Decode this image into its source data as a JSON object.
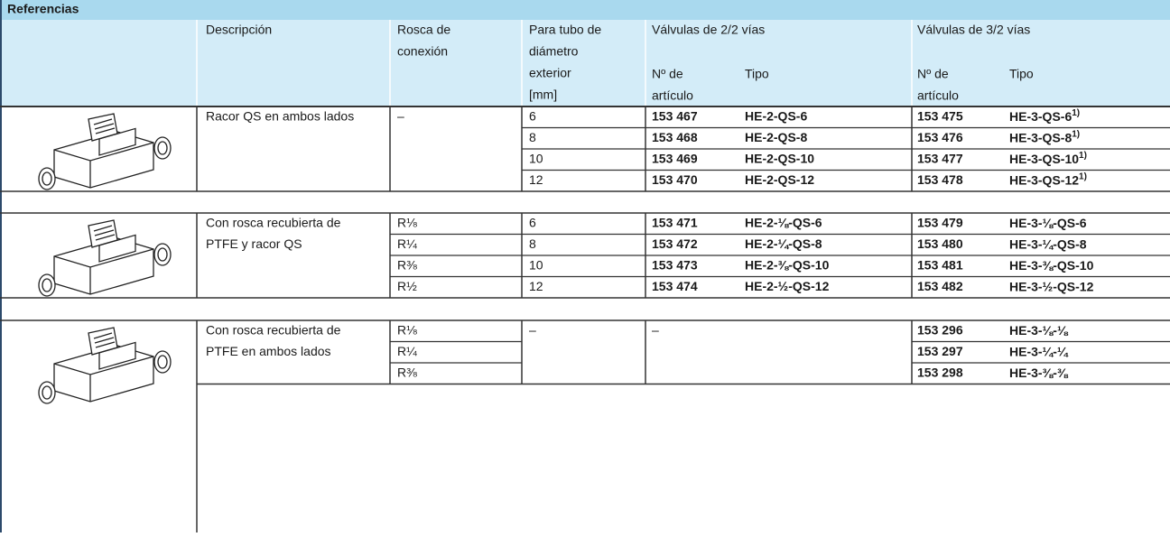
{
  "title": "Referencias",
  "headers": {
    "description": "Descripción",
    "thread": [
      "Rosca de",
      "conexión"
    ],
    "tube": [
      "Para tubo de",
      "diámetro",
      "exterior",
      "[mm]"
    ],
    "valves22": {
      "title": "Válvulas de 2/2 vías",
      "part_no": [
        "Nº de",
        "artículo"
      ],
      "type": "Tipo"
    },
    "valves32": {
      "title": "Válvulas de 3/2 vías",
      "part_no": [
        "Nº de",
        "artículo"
      ],
      "type": "Tipo"
    }
  },
  "groups": [
    {
      "description": [
        "Racor QS en ambos lados"
      ],
      "rows": [
        {
          "thread": "–",
          "tube": "6",
          "part22": "153 467",
          "type22": "HE-2-QS-6",
          "part32": "153 475",
          "type32": "HE-3-QS-6",
          "note32": "1)"
        },
        {
          "tube": "8",
          "part22": "153 468",
          "type22": "HE-2-QS-8",
          "part32": "153 476",
          "type32": "HE-3-QS-8",
          "note32": "1)"
        },
        {
          "tube": "10",
          "part22": "153 469",
          "type22": "HE-2-QS-10",
          "part32": "153 477",
          "type32": "HE-3-QS-10",
          "note32": "1)"
        },
        {
          "tube": "12",
          "part22": "153 470",
          "type22": "HE-2-QS-12",
          "part32": "153 478",
          "type32": "HE-3-QS-12",
          "note32": "1)"
        }
      ]
    },
    {
      "description": [
        "Con rosca recubierta de",
        "PTFE y racor QS"
      ],
      "rows": [
        {
          "thread": "R⅛",
          "tube": "6",
          "part22": "153 471",
          "type22": "HE-2-⅛-QS-6",
          "part32": "153 479",
          "type32": "HE-3-⅛-QS-6"
        },
        {
          "thread": "R¼",
          "tube": "8",
          "part22": "153 472",
          "type22": "HE-2-¼-QS-8",
          "part32": "153 480",
          "type32": "HE-3-¼-QS-8"
        },
        {
          "thread": "R⅜",
          "tube": "10",
          "part22": "153 473",
          "type22": "HE-2-⅜-QS-10",
          "part32": "153 481",
          "type32": "HE-3-⅜-QS-10"
        },
        {
          "thread": "R½",
          "tube": "12",
          "part22": "153 474",
          "type22": "HE-2-½-QS-12",
          "part32": "153 482",
          "type32": "HE-3-½-QS-12"
        }
      ]
    },
    {
      "description": [
        "Con rosca recubierta de",
        "PTFE en ambos lados"
      ],
      "rows": [
        {
          "thread": "R⅛",
          "tube": "–",
          "part22": "–",
          "part32": "153 296",
          "type32": "HE-3-⅛-⅛"
        },
        {
          "thread": "R¼",
          "part32": "153 297",
          "type32": "HE-3-¼-¼"
        },
        {
          "thread": "R⅜",
          "part32": "153 298",
          "type32": "HE-3-⅜-⅜"
        }
      ]
    }
  ]
}
